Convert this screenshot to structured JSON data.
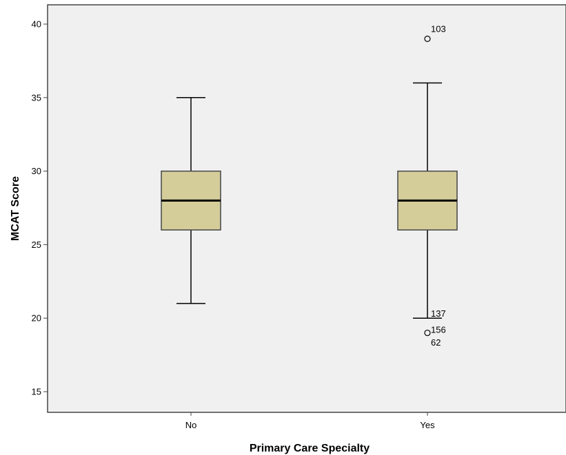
{
  "chart_data": {
    "type": "boxplot",
    "xlabel": "Primary Care Specialty",
    "ylabel": "MCAT Score",
    "ylim": [
      14,
      41.5
    ],
    "yticks": [
      15,
      20,
      25,
      30,
      35,
      40
    ],
    "grid": false,
    "colors": {
      "plot_bg": "#f0f0f0",
      "box_fill": "#d4cd9a",
      "stroke": "#000000",
      "frame": "#444444"
    },
    "categories": [
      "No",
      "Yes"
    ],
    "boxes": [
      {
        "category": "No",
        "whisker_low": 21,
        "q1": 26,
        "median": 28,
        "q3": 30,
        "whisker_high": 35,
        "outliers": []
      },
      {
        "category": "Yes",
        "whisker_low": 20,
        "q1": 26,
        "median": 28,
        "q3": 30,
        "whisker_high": 36,
        "outliers": [
          {
            "value": 39,
            "label": "103"
          },
          {
            "value": 19,
            "label": "156"
          }
        ],
        "case_labels": [
          "137",
          "62"
        ]
      }
    ]
  }
}
